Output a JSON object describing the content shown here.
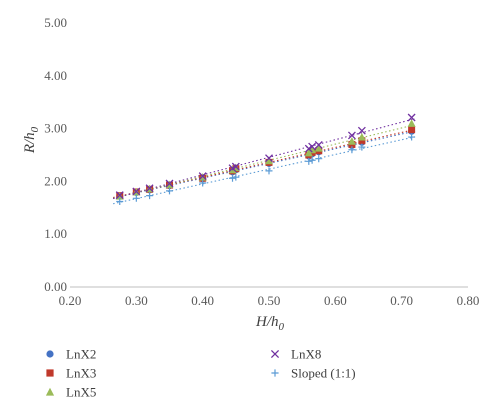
{
  "chart_data": {
    "type": "scatter",
    "title": "",
    "xlabel_main": "H/h",
    "xlabel_sub": "0",
    "ylabel_main": "R/h",
    "ylabel_sub": "0",
    "xlim": [
      0.2,
      0.8
    ],
    "ylim": [
      0.0,
      5.0
    ],
    "x_ticks": [
      "0.20",
      "0.30",
      "0.40",
      "0.50",
      "0.60",
      "0.70",
      "0.80"
    ],
    "y_ticks": [
      "0.00",
      "1.00",
      "2.00",
      "3.00",
      "4.00",
      "5.00"
    ],
    "grid": false,
    "legend_position": "bottom",
    "trendlines": "dotted linear per series",
    "series": [
      {
        "name": "LnX2",
        "marker": "circle",
        "color": "#4472c4",
        "points": [
          [
            0.275,
            1.72
          ],
          [
            0.3,
            1.79
          ],
          [
            0.32,
            1.84
          ],
          [
            0.35,
            1.92
          ],
          [
            0.4,
            2.05
          ],
          [
            0.445,
            2.18
          ],
          [
            0.45,
            2.22
          ],
          [
            0.5,
            2.34
          ],
          [
            0.56,
            2.48
          ],
          [
            0.565,
            2.52
          ],
          [
            0.575,
            2.56
          ],
          [
            0.625,
            2.68
          ],
          [
            0.64,
            2.74
          ],
          [
            0.715,
            2.95
          ]
        ]
      },
      {
        "name": "LnX3",
        "marker": "square",
        "color": "#c0392b",
        "points": [
          [
            0.275,
            1.73
          ],
          [
            0.3,
            1.8
          ],
          [
            0.32,
            1.85
          ],
          [
            0.35,
            1.93
          ],
          [
            0.4,
            2.06
          ],
          [
            0.445,
            2.2
          ],
          [
            0.45,
            2.24
          ],
          [
            0.5,
            2.36
          ],
          [
            0.56,
            2.5
          ],
          [
            0.565,
            2.55
          ],
          [
            0.575,
            2.58
          ],
          [
            0.625,
            2.7
          ],
          [
            0.64,
            2.77
          ],
          [
            0.715,
            2.98
          ]
        ]
      },
      {
        "name": "LnX5",
        "marker": "triangle",
        "color": "#9bbb59",
        "points": [
          [
            0.275,
            1.72
          ],
          [
            0.3,
            1.8
          ],
          [
            0.32,
            1.86
          ],
          [
            0.35,
            1.94
          ],
          [
            0.4,
            2.08
          ],
          [
            0.445,
            2.22
          ],
          [
            0.45,
            2.26
          ],
          [
            0.5,
            2.39
          ],
          [
            0.56,
            2.54
          ],
          [
            0.565,
            2.6
          ],
          [
            0.575,
            2.63
          ],
          [
            0.625,
            2.76
          ],
          [
            0.64,
            2.84
          ],
          [
            0.715,
            3.1
          ]
        ]
      },
      {
        "name": "LnX8",
        "marker": "x",
        "color": "#7030a0",
        "points": [
          [
            0.275,
            1.74
          ],
          [
            0.3,
            1.81
          ],
          [
            0.32,
            1.87
          ],
          [
            0.35,
            1.96
          ],
          [
            0.4,
            2.1
          ],
          [
            0.445,
            2.25
          ],
          [
            0.45,
            2.28
          ],
          [
            0.5,
            2.44
          ],
          [
            0.56,
            2.62
          ],
          [
            0.565,
            2.66
          ],
          [
            0.575,
            2.69
          ],
          [
            0.625,
            2.87
          ],
          [
            0.64,
            2.96
          ],
          [
            0.715,
            3.21
          ]
        ]
      },
      {
        "name": "Sloped (1:1)",
        "marker": "plus",
        "color": "#5b9bd5",
        "points": [
          [
            0.275,
            1.62
          ],
          [
            0.3,
            1.68
          ],
          [
            0.32,
            1.73
          ],
          [
            0.35,
            1.82
          ],
          [
            0.4,
            1.97
          ],
          [
            0.445,
            2.06
          ],
          [
            0.45,
            2.08
          ],
          [
            0.5,
            2.2
          ],
          [
            0.56,
            2.38
          ],
          [
            0.565,
            2.4
          ],
          [
            0.575,
            2.43
          ],
          [
            0.625,
            2.6
          ],
          [
            0.64,
            2.65
          ],
          [
            0.715,
            2.84
          ]
        ]
      }
    ]
  }
}
